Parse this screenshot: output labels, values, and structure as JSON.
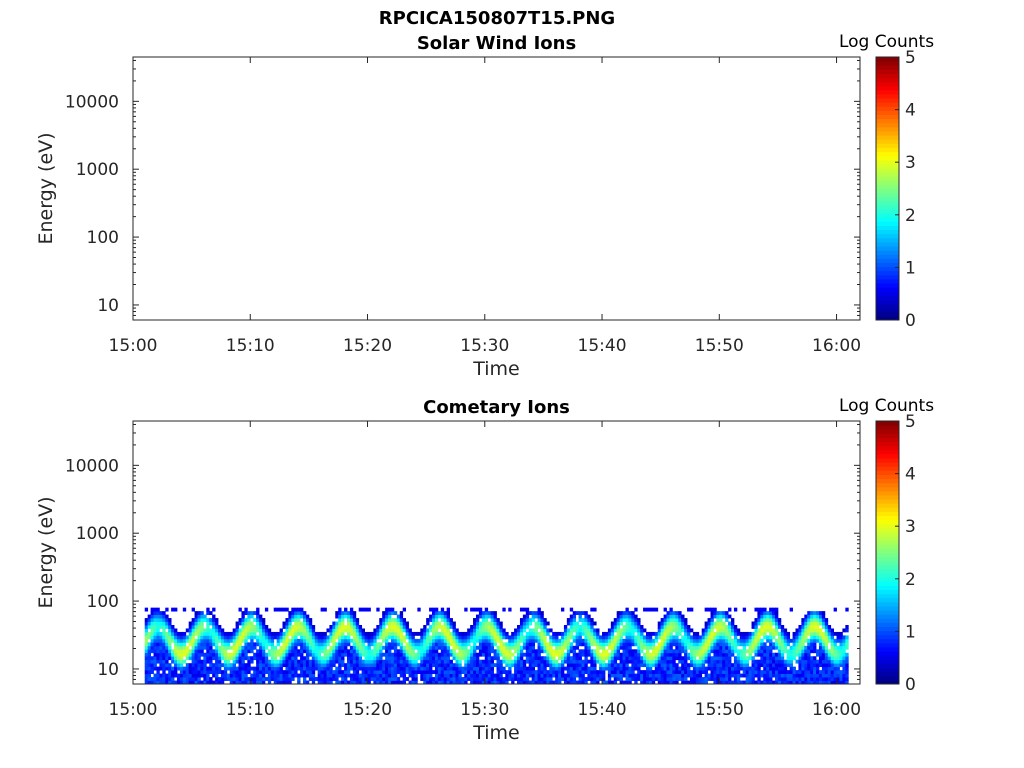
{
  "figure": {
    "title": "RPCICA150807T15.PNG"
  },
  "colorbar": {
    "label": "Log Counts",
    "ticks": [
      "0",
      "1",
      "2",
      "3",
      "4",
      "5"
    ],
    "range": [
      0,
      5
    ],
    "colormap": "jet"
  },
  "chart_data": [
    {
      "type": "heatmap",
      "title": "Solar Wind Ions",
      "xlabel": "Time",
      "ylabel": "Energy (eV)",
      "x_ticks": [
        "15:00",
        "15:10",
        "15:20",
        "15:30",
        "15:40",
        "15:50",
        "16:00"
      ],
      "xlim": [
        "15:00",
        "16:02"
      ],
      "y_ticks": [
        "10",
        "100",
        "1000",
        "10000"
      ],
      "y_scale": "log",
      "ylim": [
        6,
        45000
      ],
      "z_label": "Log Counts",
      "zlim": [
        0,
        5
      ],
      "data": "empty"
    },
    {
      "type": "heatmap",
      "title": "Cometary Ions",
      "xlabel": "Time",
      "ylabel": "Energy (eV)",
      "x_ticks": [
        "15:00",
        "15:10",
        "15:20",
        "15:30",
        "15:40",
        "15:50",
        "16:00"
      ],
      "xlim": [
        "15:00",
        "16:02"
      ],
      "y_ticks": [
        "10",
        "100",
        "1000",
        "10000"
      ],
      "y_scale": "log",
      "ylim": [
        6,
        45000
      ],
      "z_label": "Log Counts",
      "zlim": [
        0,
        5
      ],
      "data_time_range": [
        "15:01",
        "16:01"
      ],
      "data_energy_range_eV": [
        6,
        80
      ],
      "band_peak_energy_eV": 25,
      "peak_log_counts": 3,
      "band_variation": "oscillating band with ~4 minute period, energy 15-45 eV"
    }
  ]
}
